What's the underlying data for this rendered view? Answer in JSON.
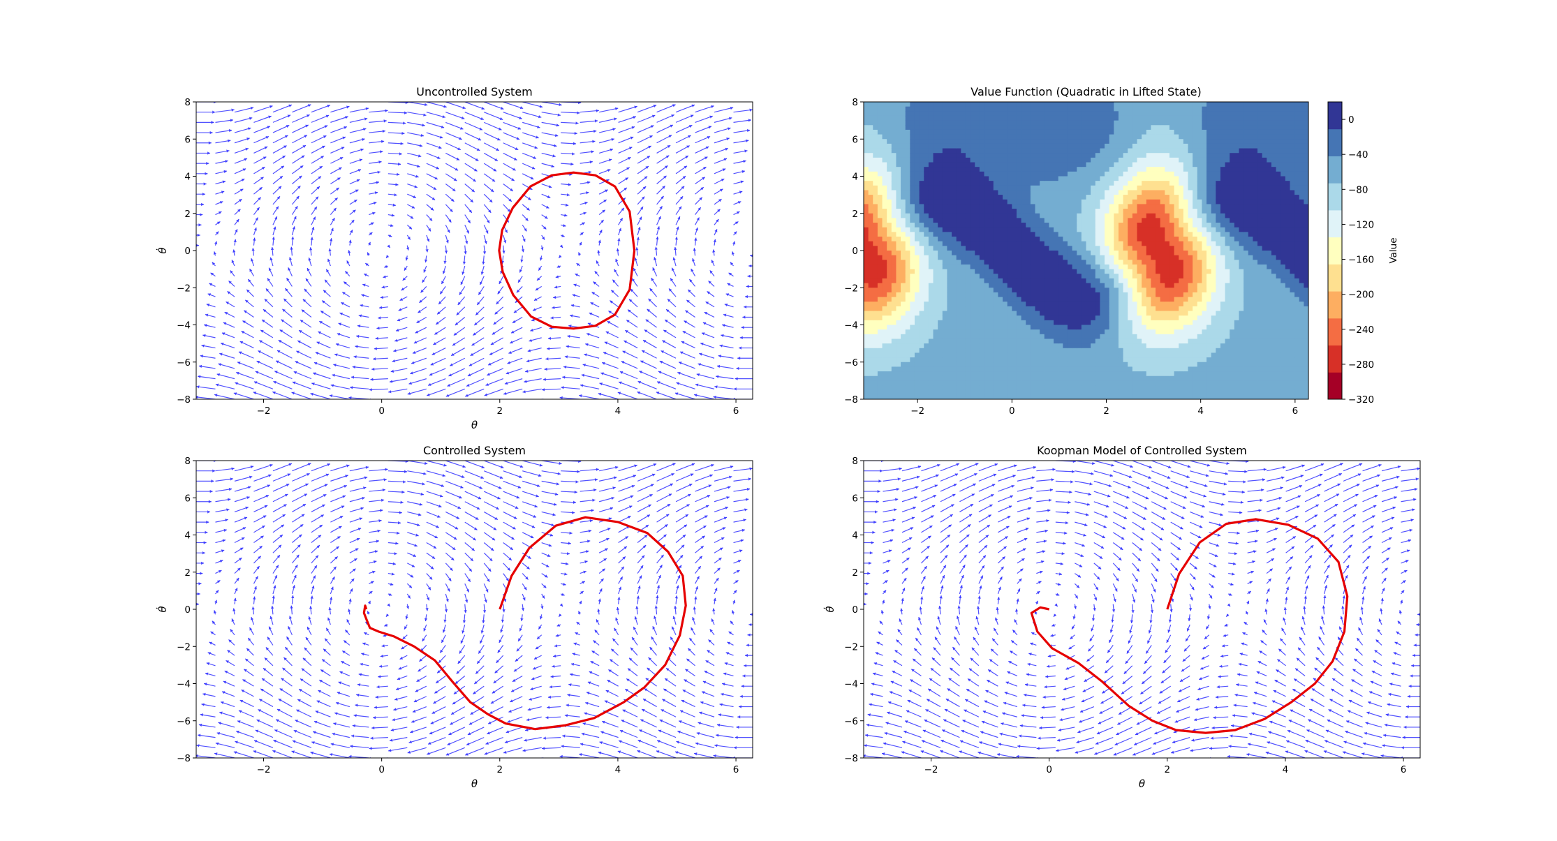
{
  "colors": {
    "quiver": "#3333ff",
    "trajectory": "#e60000",
    "cmap": [
      "#a50026",
      "#d73027",
      "#f46d43",
      "#fdae61",
      "#fee090",
      "#ffffbf",
      "#e0f3f8",
      "#abd9e9",
      "#74add1",
      "#4575b4",
      "#313695"
    ]
  },
  "chart_data": [
    {
      "id": "uncontrolled",
      "type": "quiver",
      "title": "Uncontrolled System",
      "xlabel": "θ",
      "ylabel": "θ̇",
      "xlim": [
        -3.14159,
        6.28318
      ],
      "ylim": [
        -8,
        8
      ],
      "xticks": [
        -2,
        0,
        2,
        4,
        6
      ],
      "yticks": [
        -8,
        -6,
        -4,
        -2,
        0,
        2,
        4,
        6,
        8
      ],
      "field": "pendulum",
      "trajectory": {
        "x": [
          4.28,
          4.2,
          3.95,
          3.62,
          3.25,
          2.88,
          2.52,
          2.22,
          2.04,
          1.99,
          2.05,
          2.23,
          2.53,
          2.88,
          3.25,
          3.62,
          3.95,
          4.2,
          4.28
        ],
        "y": [
          0,
          2.1,
          3.45,
          4.05,
          4.2,
          4.05,
          3.45,
          2.3,
          1.1,
          0,
          -1.15,
          -2.4,
          -3.55,
          -4.1,
          -4.2,
          -4.05,
          -3.45,
          -2.1,
          0
        ]
      }
    },
    {
      "id": "value",
      "type": "contourf",
      "title": "Value Function (Quadratic in Lifted State)",
      "xlim": [
        -3.14159,
        6.28318
      ],
      "ylim": [
        -8,
        8
      ],
      "xticks": [
        -2,
        0,
        2,
        4,
        6
      ],
      "yticks": [
        -8,
        -6,
        -4,
        -2,
        0,
        2,
        4,
        6,
        8
      ],
      "levels": [
        -320,
        20
      ],
      "colorbar": {
        "label": "Value",
        "ticks": [
          0,
          -40,
          -80,
          -120,
          -160,
          -200,
          -240,
          -280,
          -320
        ]
      }
    },
    {
      "id": "controlled",
      "type": "quiver",
      "title": "Controlled System",
      "xlabel": "θ",
      "ylabel": "θ̇",
      "xlim": [
        -3.14159,
        6.28318
      ],
      "ylim": [
        -8,
        8
      ],
      "xticks": [
        -2,
        0,
        2,
        4,
        6
      ],
      "yticks": [
        -8,
        -6,
        -4,
        -2,
        0,
        2,
        4,
        6,
        8
      ],
      "field": "pendulum",
      "trajectory": {
        "x": [
          2.0,
          2.2,
          2.5,
          2.95,
          3.45,
          4.0,
          4.5,
          4.85,
          5.1,
          5.15,
          5.05,
          4.8,
          4.45,
          4.1,
          3.6,
          3.1,
          2.6,
          2.1,
          1.8,
          1.5,
          1.2,
          0.9,
          0.55,
          0.2,
          -0.05,
          -0.2,
          -0.25,
          -0.3,
          -0.28,
          -0.26
        ],
        "y": [
          0,
          1.8,
          3.3,
          4.5,
          4.95,
          4.7,
          4.1,
          3.1,
          1.8,
          0.2,
          -1.4,
          -3.0,
          -4.2,
          -5.0,
          -5.85,
          -6.25,
          -6.45,
          -6.15,
          -5.65,
          -5.0,
          -3.9,
          -2.75,
          -2.0,
          -1.45,
          -1.2,
          -1.0,
          -0.6,
          -0.2,
          0.2,
          0.0
        ]
      }
    },
    {
      "id": "koopman",
      "type": "quiver",
      "title": "Koopman Model of Controlled System",
      "xlabel": "θ",
      "ylabel": "θ̇",
      "xlim": [
        -3.14159,
        6.28318
      ],
      "ylim": [
        -8,
        8
      ],
      "xticks": [
        -2,
        0,
        2,
        4,
        6
      ],
      "yticks": [
        -8,
        -6,
        -4,
        -2,
        0,
        2,
        4,
        6,
        8
      ],
      "field": "pendulum",
      "trajectory": {
        "x": [
          2.0,
          2.2,
          2.55,
          3.0,
          3.5,
          4.05,
          4.55,
          4.9,
          5.05,
          5.0,
          4.8,
          4.5,
          4.1,
          3.65,
          3.15,
          2.65,
          2.15,
          1.75,
          1.35,
          0.9,
          0.5,
          0.05,
          -0.2,
          -0.3,
          -0.15,
          0.0
        ],
        "y": [
          0,
          1.9,
          3.6,
          4.6,
          4.85,
          4.55,
          3.8,
          2.55,
          0.7,
          -1.2,
          -2.8,
          -4.0,
          -5.0,
          -5.9,
          -6.5,
          -6.65,
          -6.5,
          -6.0,
          -5.2,
          -3.9,
          -2.9,
          -2.1,
          -1.2,
          -0.2,
          0.1,
          0.0
        ]
      }
    }
  ]
}
